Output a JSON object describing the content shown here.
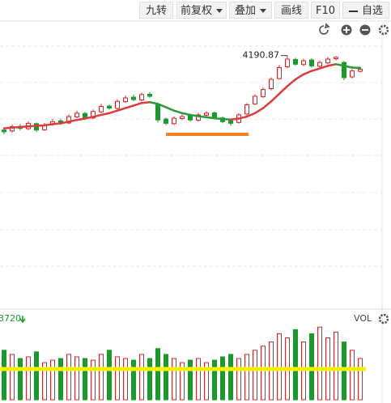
{
  "toolbar": {
    "buttons": [
      "九转",
      "前复权",
      "叠加",
      "画线",
      "F10",
      "自选"
    ]
  },
  "chart_data": [
    {
      "type": "candlestick",
      "up_color": "#e02020",
      "down_color": "#1a9a2a",
      "ylim": [
        2700,
        4400
      ],
      "open": [
        3750,
        3745,
        3772,
        3758,
        3788,
        3752,
        3782,
        3805,
        3792,
        3828,
        3848,
        3822,
        3858,
        3892,
        3878,
        3918,
        3945,
        3928,
        3962,
        3900,
        3815,
        3788,
        3818,
        3835,
        3808,
        3838,
        3852,
        3822,
        3805,
        3795,
        3845,
        3905,
        3948,
        3995,
        4055,
        4125,
        4168,
        4138,
        4165,
        4128,
        4148,
        4172,
        4150,
        4065,
        4098
      ],
      "high": [
        3765,
        3782,
        3785,
        3802,
        3795,
        3792,
        3815,
        3818,
        3842,
        3865,
        3858,
        3872,
        3905,
        3902,
        3932,
        3955,
        3958,
        3972,
        3975,
        3908,
        3825,
        3830,
        3842,
        3845,
        3852,
        3862,
        3860,
        3830,
        3812,
        3850,
        3910,
        3962,
        4002,
        4062,
        4135,
        4190.87,
        4178,
        4172,
        4175,
        4162,
        4182,
        4188,
        4158,
        4112,
        4120
      ],
      "low": [
        3725,
        3735,
        3748,
        3750,
        3738,
        3745,
        3775,
        3780,
        3785,
        3820,
        3810,
        3815,
        3850,
        3870,
        3872,
        3910,
        3920,
        3920,
        3940,
        3795,
        3778,
        3780,
        3810,
        3800,
        3800,
        3830,
        3812,
        3790,
        3775,
        3788,
        3838,
        3898,
        3940,
        3985,
        4048,
        4115,
        4130,
        4128,
        4120,
        4118,
        4140,
        4162,
        4045,
        4055,
        4090
      ],
      "close": [
        3740,
        3770,
        3760,
        3790,
        3750,
        3780,
        3800,
        3790,
        3830,
        3850,
        3820,
        3860,
        3890,
        3880,
        3920,
        3940,
        3930,
        3960,
        3950,
        3810,
        3790,
        3820,
        3830,
        3810,
        3840,
        3850,
        3820,
        3800,
        3790,
        3840,
        3900,
        3950,
        3990,
        4050,
        4120,
        4170,
        4140,
        4160,
        4130,
        4150,
        4170,
        4180,
        4060,
        4100,
        4110
      ],
      "ma": {
        "values": [
          3760,
          3765,
          3768,
          3772,
          3775,
          3778,
          3785,
          3790,
          3800,
          3810,
          3818,
          3828,
          3840,
          3850,
          3865,
          3880,
          3895,
          3910,
          3915,
          3905,
          3885,
          3865,
          3850,
          3840,
          3832,
          3826,
          3820,
          3815,
          3812,
          3818,
          3830,
          3850,
          3880,
          3920,
          3965,
          4010,
          4050,
          4080,
          4100,
          4115,
          4130,
          4140,
          4130,
          4120,
          4118
        ],
        "up_color": "#e03a3a",
        "down_color": "#2a9a3a"
      }
    },
    {
      "type": "bar",
      "title": "VOL",
      "label": "3720",
      "up_color": "#e02020",
      "down_color": "#1a9a2a",
      "ylim": [
        0,
        100
      ],
      "values": [
        60,
        55,
        50,
        52,
        58,
        45,
        48,
        50,
        55,
        52,
        50,
        48,
        55,
        60,
        52,
        50,
        48,
        55,
        50,
        62,
        55,
        50,
        45,
        48,
        50,
        45,
        48,
        52,
        55,
        50,
        55,
        60,
        65,
        70,
        80,
        75,
        85,
        70,
        80,
        88,
        75,
        82,
        70,
        60,
        50
      ]
    }
  ]
}
